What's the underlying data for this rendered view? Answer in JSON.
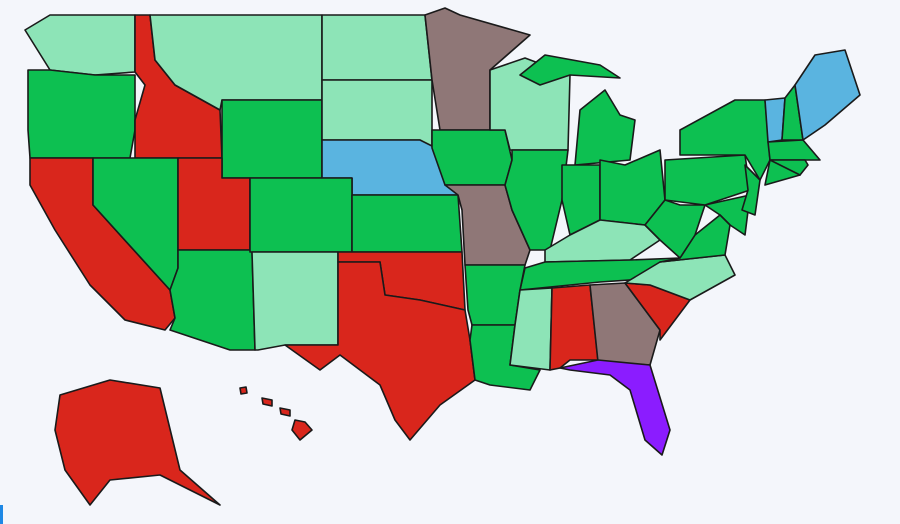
{
  "map": {
    "background": "#f4f6fb",
    "regions": [
      {
        "fill": "#8de4b7"
      },
      {
        "fill": "#0dc051"
      },
      {
        "fill": "#d9261c"
      },
      {
        "fill": "#8de4b7"
      },
      {
        "fill": "#0dc051"
      },
      {
        "fill": "#8de4b7"
      },
      {
        "fill": "#8de4b7"
      },
      {
        "fill": "#5ab4e0"
      },
      {
        "fill": "#d9261c"
      },
      {
        "fill": "#0dc051"
      },
      {
        "fill": "#d9261c"
      },
      {
        "fill": "#0dc051"
      },
      {
        "fill": "#0dc051"
      },
      {
        "fill": "#8de4b7"
      },
      {
        "fill": "#0dc051"
      },
      {
        "fill": "#d9261c"
      },
      {
        "fill": "#d9261c"
      },
      {
        "fill": "#8f7777"
      },
      {
        "fill": "#0dc051"
      },
      {
        "fill": "#8f7777"
      },
      {
        "fill": "#8de4b7"
      },
      {
        "fill": "#0dc051"
      },
      {
        "fill": "#0dc051"
      },
      {
        "fill": "#0dc051"
      },
      {
        "fill": "#0dc051"
      },
      {
        "fill": "#0dc051"
      },
      {
        "fill": "#8de4b7"
      },
      {
        "fill": "#0dc051"
      },
      {
        "fill": "#0dc051"
      },
      {
        "fill": "#0dc051"
      },
      {
        "fill": "#8de4b7"
      },
      {
        "fill": "#d9261c"
      },
      {
        "fill": "#8f7777"
      },
      {
        "fill": "#8b1cff"
      },
      {
        "fill": "#d9261c"
      },
      {
        "fill": "#8de4b7"
      },
      {
        "fill": "#0dc051"
      },
      {
        "fill": "#0dc051"
      },
      {
        "fill": "#0dc051"
      },
      {
        "fill": "#0dc051"
      },
      {
        "fill": "#0dc051"
      },
      {
        "fill": "#0dc051"
      },
      {
        "fill": "#5ab4e0"
      },
      {
        "fill": "#0dc051"
      },
      {
        "fill": "#5ab4e0"
      },
      {
        "fill": "#0dc051"
      },
      {
        "fill": "#0dc051"
      },
      {
        "fill": "#d9261c"
      },
      {
        "fill": "#d9261c"
      },
      {
        "fill": "#d9261c"
      },
      {
        "fill": "#d9261c"
      },
      {
        "fill": "#d9261c"
      }
    ]
  }
}
